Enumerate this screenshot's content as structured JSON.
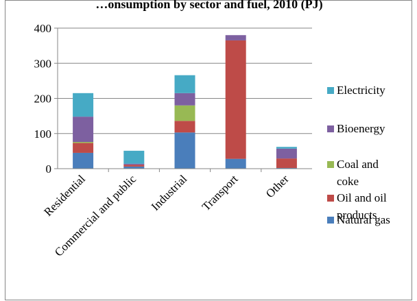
{
  "chart_data": {
    "type": "bar",
    "stacked": true,
    "title": "…onsumption by sector and fuel, 2010 (PJ)",
    "categories": [
      "Residential",
      "Commercial and public",
      "Industrial",
      "Transport",
      "Other"
    ],
    "ylim": [
      0,
      400
    ],
    "yticks": [
      0,
      100,
      200,
      300,
      400
    ],
    "grid": true,
    "legend_position": "right",
    "series": [
      {
        "name": "Natural gas",
        "color": "#4a7ebb",
        "values": [
          45,
          6,
          103,
          28,
          2
        ]
      },
      {
        "name": "Oil and oil products",
        "color": "#be4b48",
        "values": [
          28,
          5,
          33,
          337,
          27
        ]
      },
      {
        "name": "Coal and coke",
        "color": "#98b954",
        "values": [
          3,
          0,
          44,
          0,
          0
        ]
      },
      {
        "name": "Bioenergy",
        "color": "#7d60a0",
        "values": [
          72,
          3,
          35,
          15,
          28
        ]
      },
      {
        "name": "Electricity",
        "color": "#46aac5",
        "values": [
          67,
          37,
          51,
          0,
          5
        ]
      }
    ],
    "legend": [
      {
        "lines": [
          "Electricity"
        ],
        "color": "#46aac5"
      },
      {
        "lines": [
          "Bioenergy"
        ],
        "color": "#7d60a0"
      },
      {
        "lines": [
          "Coal and",
          "coke"
        ],
        "color": "#98b954"
      },
      {
        "lines": [
          "Oil and oil",
          "products"
        ],
        "color": "#be4b48"
      },
      {
        "lines": [
          "Natural gas"
        ],
        "color": "#4a7ebb"
      }
    ]
  }
}
